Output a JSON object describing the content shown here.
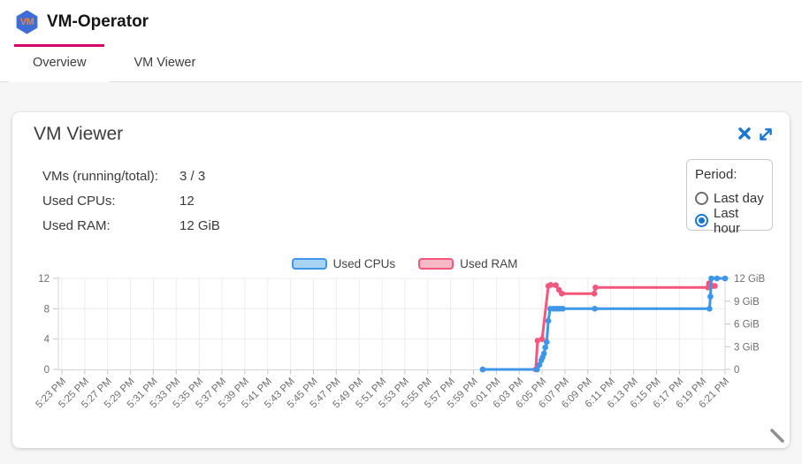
{
  "header": {
    "title": "VM-Operator",
    "logo_text": "VM"
  },
  "tabs": [
    {
      "label": "Overview",
      "active": true
    },
    {
      "label": "VM Viewer",
      "active": false
    }
  ],
  "panel": {
    "title": "VM Viewer",
    "stats": [
      {
        "label": "VMs (running/total):",
        "value": "3 / 3"
      },
      {
        "label": "Used CPUs:",
        "value": "12"
      },
      {
        "label": "Used RAM:",
        "value": "12 GiB"
      }
    ],
    "period": {
      "label": "Period:",
      "options": [
        {
          "label": "Last day",
          "selected": false
        },
        {
          "label": "Last hour",
          "selected": true
        }
      ]
    }
  },
  "icons": {
    "logo": "vm-logo-hexagon",
    "close": "close-icon",
    "expand": "expand-icon",
    "resize_handle": "resize-handle-icon"
  },
  "colors": {
    "tab_accent": "#d4046c",
    "icon_blue": "#1877d2",
    "radio_checked": "#1876d2",
    "cpu_line": "#3e96e8",
    "cpu_fill": "#a9d3f3",
    "ram_line": "#f4567c",
    "ram_fill": "#f8b9c6"
  },
  "chart_data": {
    "type": "line",
    "title": "",
    "x_unit": "tick index: 0 = 5:23 PM, 1 unit = 2 minutes",
    "x_ticks": [
      "5:23 PM",
      "5:25 PM",
      "5:27 PM",
      "5:29 PM",
      "5:31 PM",
      "5:33 PM",
      "5:35 PM",
      "5:37 PM",
      "5:39 PM",
      "5:41 PM",
      "5:43 PM",
      "5:45 PM",
      "5:47 PM",
      "5:49 PM",
      "5:51 PM",
      "5:53 PM",
      "5:55 PM",
      "5:57 PM",
      "5:59 PM",
      "6:01 PM",
      "6:03 PM",
      "6:05 PM",
      "6:07 PM",
      "6:09 PM",
      "6:11 PM",
      "6:13 PM",
      "6:15 PM",
      "6:17 PM",
      "6:19 PM",
      "6:21 PM"
    ],
    "y_left": {
      "ticks": [
        0,
        4,
        8,
        12
      ],
      "range": [
        0,
        12
      ],
      "label": ""
    },
    "y_right": {
      "ticks": [
        {
          "value": 0,
          "label": "0"
        },
        {
          "value": 3,
          "label": "3 GiB"
        },
        {
          "value": 6,
          "label": "6 GiB"
        },
        {
          "value": 9,
          "label": "9 GiB"
        },
        {
          "value": 12,
          "label": "12 GiB"
        }
      ],
      "range": [
        0,
        12
      ]
    },
    "grid": true,
    "legend_position": "top-center",
    "legend": [
      {
        "name": "Used CPUs",
        "line": "#3e96e8",
        "fill": "#a9d3f3"
      },
      {
        "name": "Used RAM",
        "line": "#f4567c",
        "fill": "#f8b9c6"
      }
    ],
    "series": [
      {
        "name": "Used RAM",
        "axis": "right",
        "color": "#f4567c",
        "points": [
          [
            18.4,
            0
          ],
          [
            20.72,
            0
          ],
          [
            20.8,
            3.8
          ],
          [
            21.0,
            4.0
          ],
          [
            21.27,
            11
          ],
          [
            21.38,
            11.15
          ],
          [
            21.6,
            11.1
          ],
          [
            21.74,
            10.5
          ],
          [
            21.86,
            10
          ],
          [
            23.28,
            10
          ],
          [
            23.33,
            10.8
          ],
          [
            28.25,
            10.8
          ],
          [
            28.3,
            11.35
          ],
          [
            28.45,
            11
          ],
          [
            28.55,
            11
          ]
        ]
      },
      {
        "name": "Used CPUs",
        "axis": "left",
        "color": "#3e96e8",
        "points": [
          [
            18.4,
            0
          ],
          [
            20.78,
            0
          ],
          [
            20.88,
            0.6
          ],
          [
            20.96,
            1.2
          ],
          [
            21.02,
            1.6
          ],
          [
            21.08,
            2.1
          ],
          [
            21.14,
            2.9
          ],
          [
            21.2,
            3.6
          ],
          [
            21.27,
            6.4
          ],
          [
            21.35,
            8
          ],
          [
            21.5,
            8
          ],
          [
            21.63,
            8
          ],
          [
            21.76,
            8
          ],
          [
            21.9,
            8
          ],
          [
            23.3,
            8
          ],
          [
            28.32,
            8
          ],
          [
            28.36,
            9.6
          ],
          [
            28.4,
            12
          ],
          [
            28.65,
            12
          ],
          [
            29,
            12
          ]
        ]
      }
    ]
  }
}
